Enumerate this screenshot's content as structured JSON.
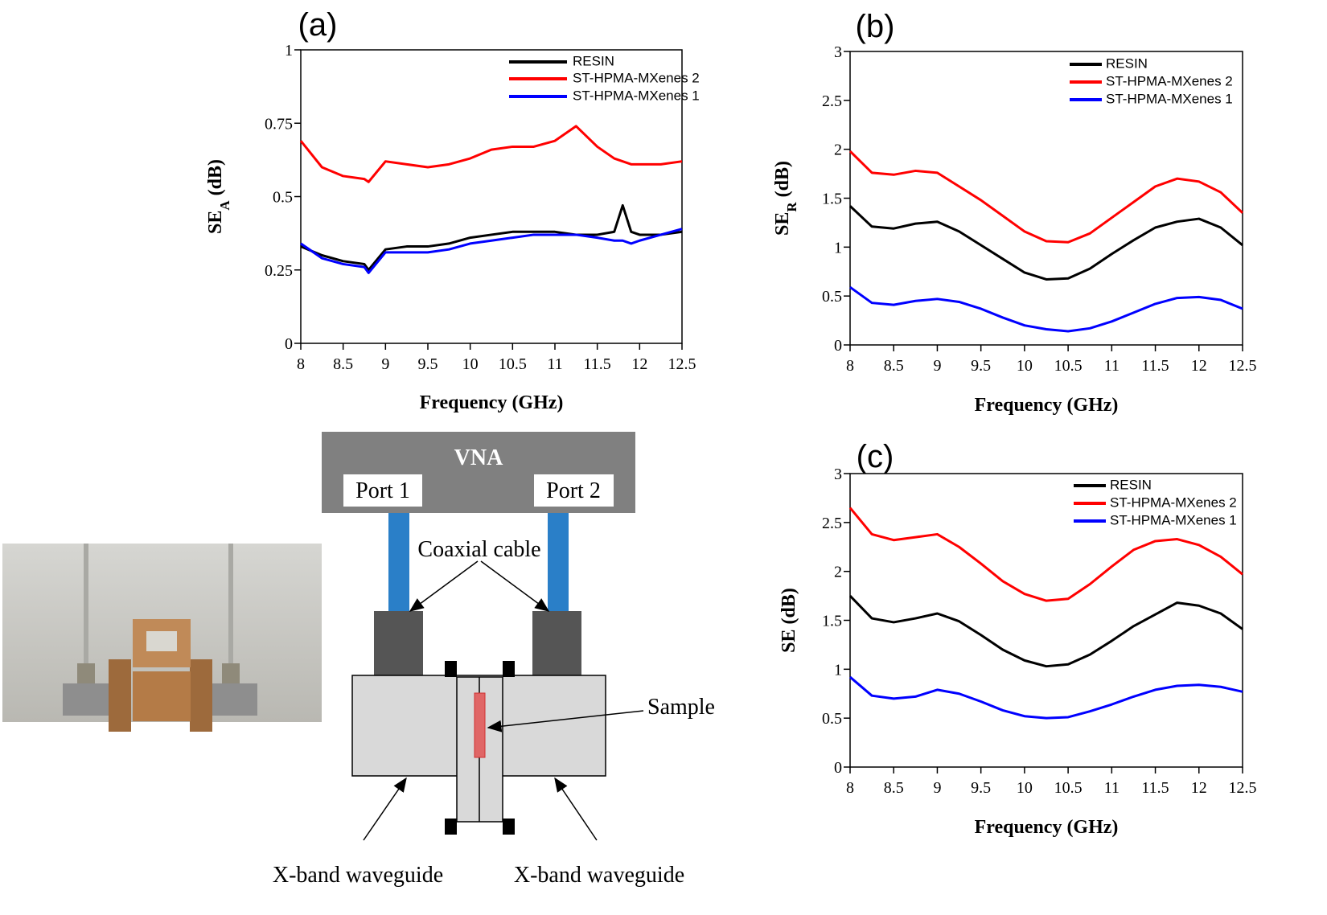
{
  "chart_data": [
    {
      "type": "line",
      "title": "(a)",
      "xlabel": "Frequency (GHz)",
      "ylabel": [
        "SE",
        "A",
        " (dB)"
      ],
      "x": [
        8,
        8.25,
        8.5,
        8.75,
        8.8,
        9,
        9.25,
        9.5,
        9.75,
        10,
        10.25,
        10.5,
        10.75,
        11,
        11.25,
        11.5,
        11.7,
        11.8,
        11.9,
        12,
        12.25,
        12.5
      ],
      "series": [
        {
          "name": "RESIN",
          "color": "#000000",
          "values": [
            0.33,
            0.3,
            0.28,
            0.27,
            0.25,
            0.32,
            0.33,
            0.33,
            0.34,
            0.36,
            0.37,
            0.38,
            0.38,
            0.38,
            0.37,
            0.37,
            0.38,
            0.47,
            0.38,
            0.37,
            0.37,
            0.38
          ]
        },
        {
          "name": "ST-HPMA-MXenes 2",
          "color": "#ff0000",
          "values": [
            0.69,
            0.6,
            0.57,
            0.56,
            0.55,
            0.62,
            0.61,
            0.6,
            0.61,
            0.63,
            0.66,
            0.67,
            0.67,
            0.69,
            0.74,
            0.67,
            0.63,
            0.62,
            0.61,
            0.61,
            0.61,
            0.62
          ]
        },
        {
          "name": "ST-HPMA-MXenes 1",
          "color": "#0000ff",
          "values": [
            0.34,
            0.29,
            0.27,
            0.26,
            0.24,
            0.31,
            0.31,
            0.31,
            0.32,
            0.34,
            0.35,
            0.36,
            0.37,
            0.37,
            0.37,
            0.36,
            0.35,
            0.35,
            0.34,
            0.35,
            0.37,
            0.39
          ]
        }
      ],
      "xlim": [
        8,
        12.5
      ],
      "xticks": [
        8,
        8.5,
        9,
        9.5,
        10,
        10.5,
        11,
        11.5,
        12,
        12.5
      ],
      "ylim": [
        0,
        1
      ],
      "yticks": [
        0,
        0.25,
        0.5,
        0.75,
        1
      ],
      "legend": "upper right"
    },
    {
      "type": "line",
      "title": "(b)",
      "xlabel": "Frequency (GHz)",
      "ylabel": [
        "SE",
        "R",
        " (dB)"
      ],
      "x": [
        8,
        8.25,
        8.5,
        8.75,
        9,
        9.25,
        9.5,
        9.75,
        10,
        10.25,
        10.5,
        10.75,
        11,
        11.25,
        11.5,
        11.75,
        12,
        12.25,
        12.5
      ],
      "series": [
        {
          "name": "RESIN",
          "color": "#000000",
          "values": [
            1.42,
            1.21,
            1.19,
            1.24,
            1.26,
            1.16,
            1.02,
            0.88,
            0.74,
            0.67,
            0.68,
            0.78,
            0.93,
            1.07,
            1.2,
            1.26,
            1.29,
            1.2,
            1.02
          ]
        },
        {
          "name": "ST-HPMA-MXenes 2",
          "color": "#ff0000",
          "values": [
            1.98,
            1.76,
            1.74,
            1.78,
            1.76,
            1.62,
            1.48,
            1.32,
            1.16,
            1.06,
            1.05,
            1.14,
            1.3,
            1.46,
            1.62,
            1.7,
            1.67,
            1.56,
            1.35
          ]
        },
        {
          "name": "ST-HPMA-MXenes 1",
          "color": "#0000ff",
          "values": [
            0.59,
            0.43,
            0.41,
            0.45,
            0.47,
            0.44,
            0.37,
            0.28,
            0.2,
            0.16,
            0.14,
            0.17,
            0.24,
            0.33,
            0.42,
            0.48,
            0.49,
            0.46,
            0.37
          ]
        }
      ],
      "xlim": [
        8,
        12.5
      ],
      "xticks": [
        8,
        8.5,
        9,
        9.5,
        10,
        10.5,
        11,
        11.5,
        12,
        12.5
      ],
      "ylim": [
        0,
        3
      ],
      "yticks": [
        0,
        0.5,
        1,
        1.5,
        2,
        2.5,
        3
      ],
      "legend": "upper right"
    },
    {
      "type": "line",
      "title": "(c)",
      "xlabel": "Frequency (GHz)",
      "ylabel": [
        "SE (dB)"
      ],
      "x": [
        8,
        8.25,
        8.5,
        8.75,
        9,
        9.25,
        9.5,
        9.75,
        10,
        10.25,
        10.5,
        10.75,
        11,
        11.25,
        11.5,
        11.75,
        12,
        12.25,
        12.5
      ],
      "series": [
        {
          "name": "RESIN",
          "color": "#000000",
          "values": [
            1.75,
            1.52,
            1.48,
            1.52,
            1.57,
            1.49,
            1.35,
            1.2,
            1.09,
            1.03,
            1.05,
            1.15,
            1.29,
            1.44,
            1.56,
            1.68,
            1.65,
            1.57,
            1.41
          ]
        },
        {
          "name": "ST-HPMA-MXenes 2",
          "color": "#ff0000",
          "values": [
            2.65,
            2.38,
            2.32,
            2.35,
            2.38,
            2.25,
            2.08,
            1.9,
            1.77,
            1.7,
            1.72,
            1.87,
            2.05,
            2.22,
            2.31,
            2.33,
            2.27,
            2.15,
            1.97
          ]
        },
        {
          "name": "ST-HPMA-MXenes 1",
          "color": "#0000ff",
          "values": [
            0.92,
            0.73,
            0.7,
            0.72,
            0.79,
            0.75,
            0.67,
            0.58,
            0.52,
            0.5,
            0.51,
            0.57,
            0.64,
            0.72,
            0.79,
            0.83,
            0.84,
            0.82,
            0.77
          ]
        }
      ],
      "xlim": [
        8,
        12.5
      ],
      "xticks": [
        8,
        8.5,
        9,
        9.5,
        10,
        10.5,
        11,
        11.5,
        12,
        12.5
      ],
      "ylim": [
        0,
        3
      ],
      "yticks": [
        0,
        0.5,
        1,
        1.5,
        2,
        2.5,
        3
      ],
      "legend": "upper right"
    }
  ],
  "diagram": {
    "vna": "VNA",
    "port1": "Port 1",
    "port2": "Port 2",
    "cable": "Coaxial cable",
    "sample": "Sample",
    "waveguide_left": "X-band waveguide",
    "waveguide_right": "X-band waveguide"
  }
}
